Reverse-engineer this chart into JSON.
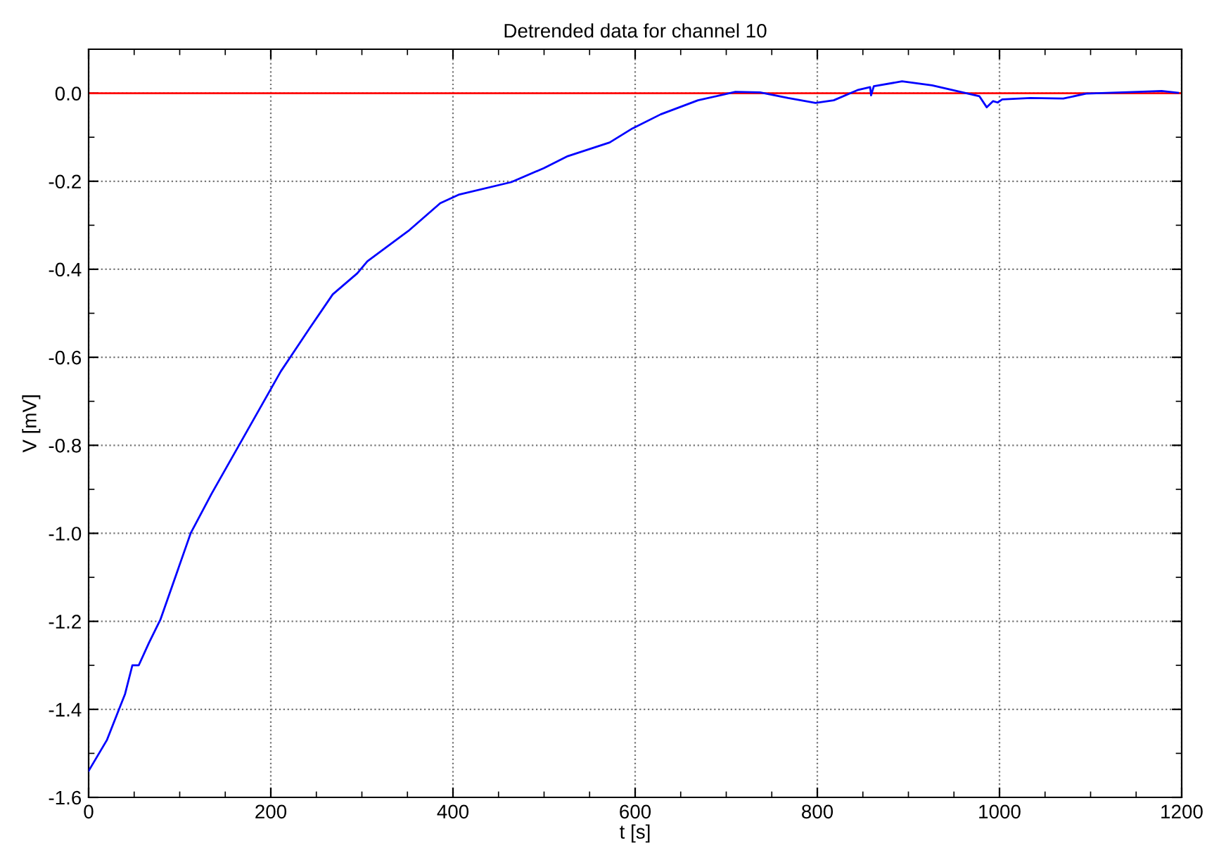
{
  "chart_data": {
    "type": "line",
    "title": "Detrended data for channel 10",
    "xlabel": "t [s]",
    "ylabel": "V [mV]",
    "xlim": [
      0,
      1200
    ],
    "ylim": [
      -1.6,
      0.1
    ],
    "xticks": [
      0,
      200,
      400,
      600,
      800,
      1000,
      1200
    ],
    "yticks": [
      {
        "value": -1.6,
        "label": "-1.6"
      },
      {
        "value": -1.4,
        "label": "-1.4"
      },
      {
        "value": -1.2,
        "label": "-1.2"
      },
      {
        "value": -1.0,
        "label": "-1.0"
      },
      {
        "value": -0.8,
        "label": "-0.8"
      },
      {
        "value": -0.6,
        "label": "-0.6"
      },
      {
        "value": -0.4,
        "label": "-0.4"
      },
      {
        "value": -0.2,
        "label": "-0.2"
      },
      {
        "value": 0,
        "label": "0.0"
      }
    ],
    "grid": true,
    "marker": "none",
    "line_style": "solid",
    "ref_lines": [
      {
        "axis": "y",
        "value": 0,
        "color": "#ff0000"
      }
    ],
    "series": [
      {
        "color": "#0000ff",
        "x": [
          0,
          20,
          40,
          48,
          55,
          66,
          79,
          112,
          135,
          211,
          242,
          268,
          295,
          306,
          351,
          386,
          407,
          464,
          500,
          526,
          572,
          597,
          628,
          669,
          710,
          737,
          768,
          798,
          818,
          844,
          858,
          859,
          862,
          893,
          926,
          957,
          978,
          986,
          993,
          998,
          1003,
          1034,
          1070,
          1095,
          1152,
          1178,
          1196
        ],
        "values": [
          -1.54,
          -1.47,
          -1.365,
          -1.3,
          -1.3,
          -1.25,
          -1.195,
          -1.0,
          -0.91,
          -0.632,
          -0.536,
          -0.457,
          -0.409,
          -0.382,
          -0.313,
          -0.25,
          -0.23,
          -0.202,
          -0.17,
          -0.143,
          -0.112,
          -0.08,
          -0.048,
          -0.016,
          0.003,
          0.002,
          -0.011,
          -0.022,
          -0.016,
          0.007,
          0.014,
          -0.005,
          0.016,
          0.027,
          0.018,
          0.003,
          -0.007,
          -0.032,
          -0.018,
          -0.021,
          -0.014,
          -0.011,
          -0.012,
          -0.001,
          0.003,
          0.005,
          0.001
        ]
      }
    ]
  }
}
